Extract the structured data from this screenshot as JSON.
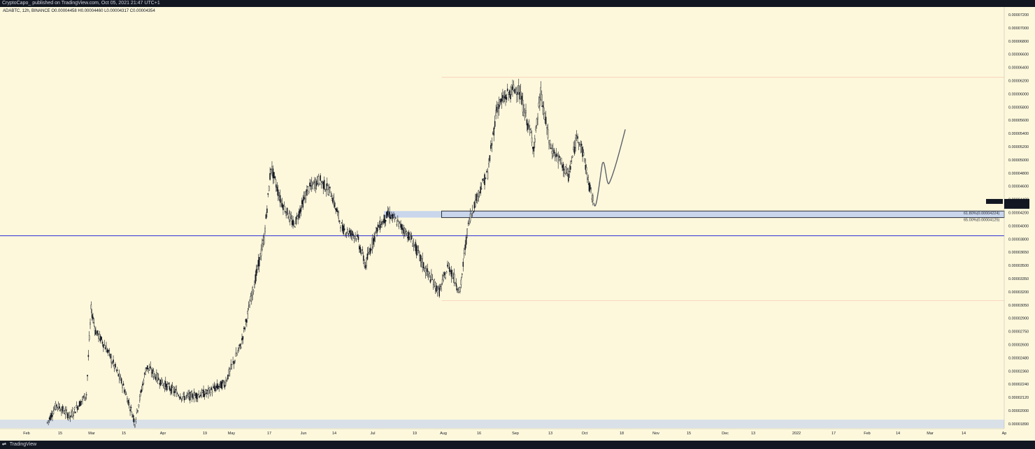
{
  "header": {
    "publisher": "CryptoCapo_ published on TradingView.com, Oct 05, 2021 21:47 UTC+1"
  },
  "footer": {
    "logo_icon": "tradingview-logo-icon",
    "brand": "TradingView"
  },
  "symbol_info": {
    "text": "ADABTC, 12h, BINANCE  O0.00004458  H0.00004460  L0.00004317  C0.00004354"
  },
  "price_tag": {
    "symbol": "ADABTC",
    "price": "0.00004354",
    "countdown": "03:12:54",
    "color": "#131722"
  },
  "fib_labels": {
    "level1": "61.80%(0.00004224)",
    "level2": "65.00%(0.00004125)"
  },
  "colors": {
    "background": "#fdf8dc",
    "candle": "#131722",
    "horizontal_line": "#2b2ad6",
    "zone_fill": "#c9d6ec",
    "zone_border": "#2a2e39",
    "fib_line": "#f2b8a2",
    "projection": "#5d606b"
  },
  "chart_data": {
    "type": "candlestick",
    "symbol": "ADABTC",
    "timeframe": "12h",
    "exchange": "BINANCE",
    "y_axis_ticks": [
      "0.00007200",
      "0.00007000",
      "0.00006800",
      "0.00006600",
      "0.00006400",
      "0.00006200",
      "0.00006000",
      "0.00005800",
      "0.00005600",
      "0.00005400",
      "0.00005200",
      "0.00005000",
      "0.00004800",
      "0.00004600",
      "0.00004400",
      "0.00004200",
      "0.00004000",
      "0.00003800",
      "0.00003650",
      "0.00003500",
      "0.00003350",
      "0.00003200",
      "0.00003050",
      "0.00002900",
      "0.00002750",
      "0.00002600",
      "0.00002480",
      "0.00002360",
      "0.00002240",
      "0.00002120",
      "0.00002000",
      "0.00001890"
    ],
    "x_axis_ticks": [
      "Feb",
      "15",
      "Mar",
      "15",
      "Apr",
      "19",
      "May",
      "17",
      "Jun",
      "14",
      "Jul",
      "19",
      "Aug",
      "16",
      "Sep",
      "13",
      "Oct",
      "18",
      "Nov",
      "15",
      "Dec",
      "13",
      "2022",
      "17",
      "Feb",
      "14",
      "Mar",
      "14",
      "Ap"
    ],
    "price_path": [
      [
        "2021-02-10",
        1.9e-05
      ],
      [
        "2021-02-14",
        2.05e-05
      ],
      [
        "2021-02-20",
        1.95e-05
      ],
      [
        "2021-02-27",
        2.15e-05
      ],
      [
        "2021-03-01",
        3e-05
      ],
      [
        "2021-03-03",
        2.75e-05
      ],
      [
        "2021-03-08",
        2.55e-05
      ],
      [
        "2021-03-15",
        2.22e-05
      ],
      [
        "2021-03-20",
        1.9e-05
      ],
      [
        "2021-03-25",
        2.4e-05
      ],
      [
        "2021-04-01",
        2.25e-05
      ],
      [
        "2021-04-10",
        2.12e-05
      ],
      [
        "2021-04-20",
        2.16e-05
      ],
      [
        "2021-04-28",
        2.25e-05
      ],
      [
        "2021-05-05",
        2.6e-05
      ],
      [
        "2021-05-10",
        3.2e-05
      ],
      [
        "2021-05-15",
        3.8e-05
      ],
      [
        "2021-05-18",
        4.9e-05
      ],
      [
        "2021-05-22",
        4.4e-05
      ],
      [
        "2021-05-28",
        4e-05
      ],
      [
        "2021-06-03",
        4.55e-05
      ],
      [
        "2021-06-08",
        4.7e-05
      ],
      [
        "2021-06-13",
        4.5e-05
      ],
      [
        "2021-06-18",
        3.95e-05
      ],
      [
        "2021-06-24",
        3.85e-05
      ],
      [
        "2021-06-28",
        3.5e-05
      ],
      [
        "2021-07-03",
        3.95e-05
      ],
      [
        "2021-07-08",
        4.18e-05
      ],
      [
        "2021-07-12",
        4.05e-05
      ],
      [
        "2021-07-18",
        3.8e-05
      ],
      [
        "2021-07-24",
        3.45e-05
      ],
      [
        "2021-07-30",
        3.2e-05
      ],
      [
        "2021-08-03",
        3.5e-05
      ],
      [
        "2021-08-08",
        3.2e-05
      ],
      [
        "2021-08-12",
        4.1e-05
      ],
      [
        "2021-08-16",
        4.5e-05
      ],
      [
        "2021-08-20",
        4.8e-05
      ],
      [
        "2021-08-24",
        5.8e-05
      ],
      [
        "2021-08-29",
        6e-05
      ],
      [
        "2021-09-02",
        6.1e-05
      ],
      [
        "2021-09-06",
        5.6e-05
      ],
      [
        "2021-09-09",
        5.2e-05
      ],
      [
        "2021-09-12",
        6e-05
      ],
      [
        "2021-09-16",
        5.2e-05
      ],
      [
        "2021-09-20",
        5e-05
      ],
      [
        "2021-09-24",
        4.75e-05
      ],
      [
        "2021-09-28",
        5.4e-05
      ],
      [
        "2021-10-01",
        5e-05
      ],
      [
        "2021-10-03",
        4.6e-05
      ],
      [
        "2021-10-05",
        4.35e-05
      ]
    ],
    "horizontal_line_value": 3.85e-05,
    "support_zone": [
      4.125e-05,
      4.224e-05
    ],
    "fib_high": 6.25e-05,
    "fib_low": 3.1e-05
  }
}
